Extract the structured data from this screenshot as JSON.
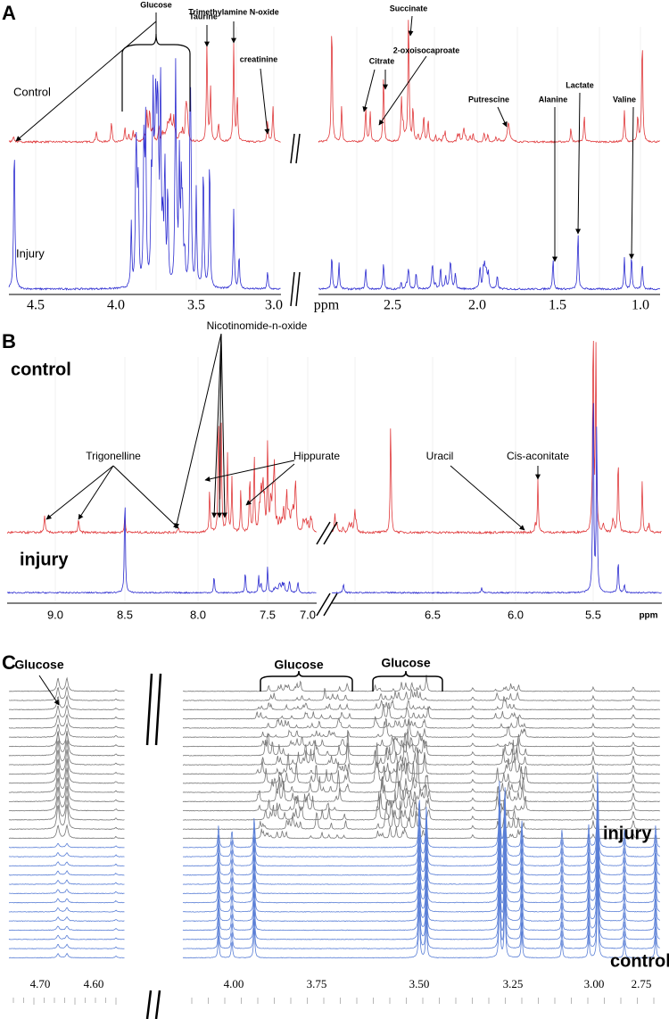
{
  "panels": [
    {
      "letter": "A",
      "traces": [
        "Control",
        "Injury"
      ],
      "labels": [
        "Glucose",
        "Taurine",
        "Trimethylamine N-oxide",
        "creatinine",
        "Citrate",
        "Succinate",
        "2-oxoisocaproate",
        "Putrescine",
        "Alanine",
        "Lactate",
        "Valine"
      ],
      "ticks": [
        "4.5",
        "4.0",
        "3.5",
        "3.0",
        "ppm",
        "2.5",
        "2.0",
        "1.5",
        "1.0"
      ]
    },
    {
      "letter": "B",
      "traces": [
        "control",
        "injury"
      ],
      "labels": [
        "Nicotinomide-n-oxide",
        "Trigonelline",
        "Hippurate",
        "Uracil",
        "Cis-aconitate"
      ],
      "ticks": [
        "9.0",
        "8.5",
        "8.0",
        "7.5",
        "7.0",
        "6.5",
        "6.0",
        "5.5",
        "ppm"
      ]
    },
    {
      "letter": "C",
      "traces": [
        "injury",
        "control"
      ],
      "labels": [
        "Glucose",
        "Glucose",
        "Glucose"
      ],
      "ticks": [
        "4.70",
        "4.60",
        "4.00",
        "3.75",
        "3.50",
        "3.25",
        "3.00",
        "2.75"
      ]
    }
  ]
}
